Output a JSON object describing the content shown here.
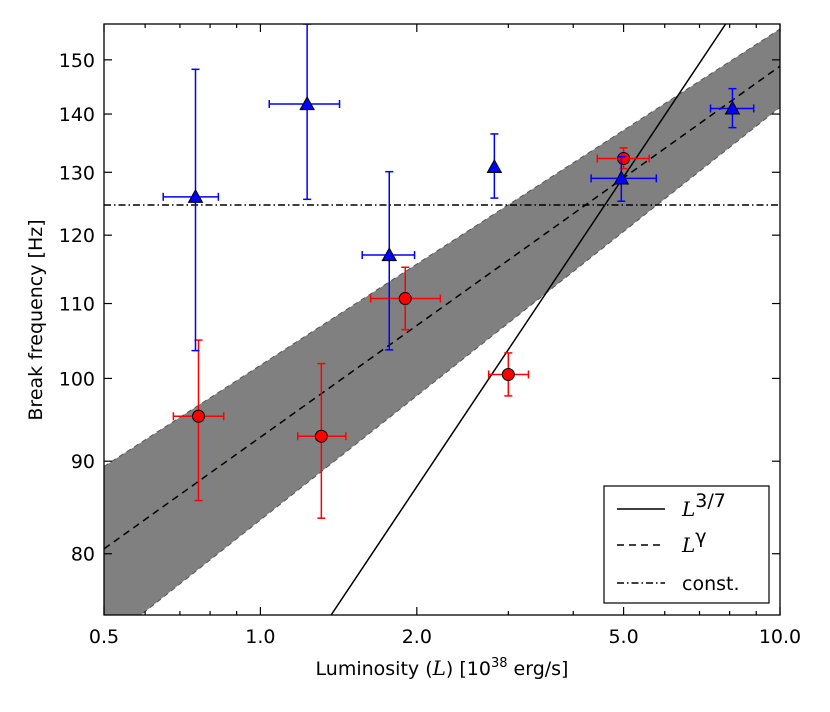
{
  "chart_data": {
    "type": "scatter",
    "title": "",
    "xlabel": "Luminosity (L) [10^38 erg/s]",
    "xlabel_parts": {
      "prefix": "Luminosity (",
      "symbol": "L",
      "middle": ") [10",
      "exponent": "38",
      "suffix": " erg/s]"
    },
    "ylabel": "Break frequency [Hz]",
    "xscale": "log",
    "yscale": "log",
    "xlim": [
      0.5,
      10.0
    ],
    "ylim": [
      74,
      157
    ],
    "xticks": [
      {
        "value": 0.5,
        "label": "0.5"
      },
      {
        "value": 1.0,
        "label": "1.0"
      },
      {
        "value": 2.0,
        "label": "2.0"
      },
      {
        "value": 5.0,
        "label": "5.0"
      },
      {
        "value": 10.0,
        "label": "10.0"
      }
    ],
    "yticks": [
      {
        "value": 80,
        "label": "80"
      },
      {
        "value": 90,
        "label": "90"
      },
      {
        "value": 100,
        "label": "100"
      },
      {
        "value": 110,
        "label": "110"
      },
      {
        "value": 120,
        "label": "120"
      },
      {
        "value": 130,
        "label": "130"
      },
      {
        "value": 140,
        "label": "140"
      },
      {
        "value": 150,
        "label": "150"
      }
    ],
    "series": [
      {
        "name": "red circles",
        "marker": "circle",
        "color": "#ff0000",
        "points": [
          {
            "x": 0.76,
            "y": 95.3,
            "xlo": 0.68,
            "xhi": 0.85,
            "ylo": 85.6,
            "yhi": 105.0
          },
          {
            "x": 1.31,
            "y": 92.9,
            "xlo": 1.18,
            "xhi": 1.46,
            "ylo": 83.7,
            "yhi": 101.9
          },
          {
            "x": 1.9,
            "y": 110.7,
            "xlo": 1.63,
            "xhi": 2.22,
            "ylo": 106.4,
            "yhi": 115.2
          },
          {
            "x": 3.0,
            "y": 100.5,
            "xlo": 2.75,
            "xhi": 3.28,
            "ylo": 97.8,
            "yhi": 103.3
          },
          {
            "x": 5.0,
            "y": 132.3,
            "xlo": 4.45,
            "xhi": 5.6,
            "ylo": 130.6,
            "yhi": 134.1
          }
        ]
      },
      {
        "name": "blue triangles",
        "marker": "triangle",
        "color": "#0000ff",
        "points": [
          {
            "x": 0.75,
            "y": 126.0,
            "xlo": 0.65,
            "xhi": 0.83,
            "ylo": 103.6,
            "yhi": 148.2
          },
          {
            "x": 1.23,
            "y": 141.8,
            "xlo": 1.04,
            "xhi": 1.42,
            "ylo": 125.6,
            "yhi": 157.0
          },
          {
            "x": 1.77,
            "y": 117.0,
            "xlo": 1.57,
            "xhi": 1.98,
            "ylo": 103.7,
            "yhi": 130.1
          },
          {
            "x": 2.82,
            "y": 130.9,
            "xlo": 2.82,
            "xhi": 2.82,
            "ylo": 125.8,
            "yhi": 136.5
          },
          {
            "x": 4.95,
            "y": 129.0,
            "xlo": 4.33,
            "xhi": 5.78,
            "ylo": 125.3,
            "yhi": 132.6
          },
          {
            "x": 8.1,
            "y": 141.0,
            "xlo": 7.35,
            "xhi": 8.9,
            "ylo": 137.6,
            "yhi": 144.6
          }
        ]
      }
    ],
    "lines": [
      {
        "name": "L^3/7",
        "style": "solid",
        "points": [
          [
            1.368,
            74.0
          ],
          [
            7.86,
            157.0
          ]
        ]
      },
      {
        "name": "L^gamma",
        "style": "dashed",
        "points": [
          [
            0.5,
            80.5
          ],
          [
            10.0,
            148.8
          ]
        ]
      },
      {
        "name": "const.",
        "style": "dashdot",
        "y": 124.7
      }
    ],
    "band": {
      "color": "#808080",
      "upper": [
        [
          0.5,
          89.4
        ],
        [
          10.0,
          156.0
        ]
      ],
      "lower": [
        [
          0.5,
          71.3
        ],
        [
          10.0,
          141.2
        ]
      ]
    },
    "legend": {
      "position": "bottom-right",
      "entries": [
        {
          "style": "solid",
          "label_base": "L",
          "label_sup": "3/7"
        },
        {
          "style": "dashed",
          "label_base": "L",
          "label_sup": "γ"
        },
        {
          "style": "dashdot",
          "label_text": "const."
        }
      ]
    }
  }
}
